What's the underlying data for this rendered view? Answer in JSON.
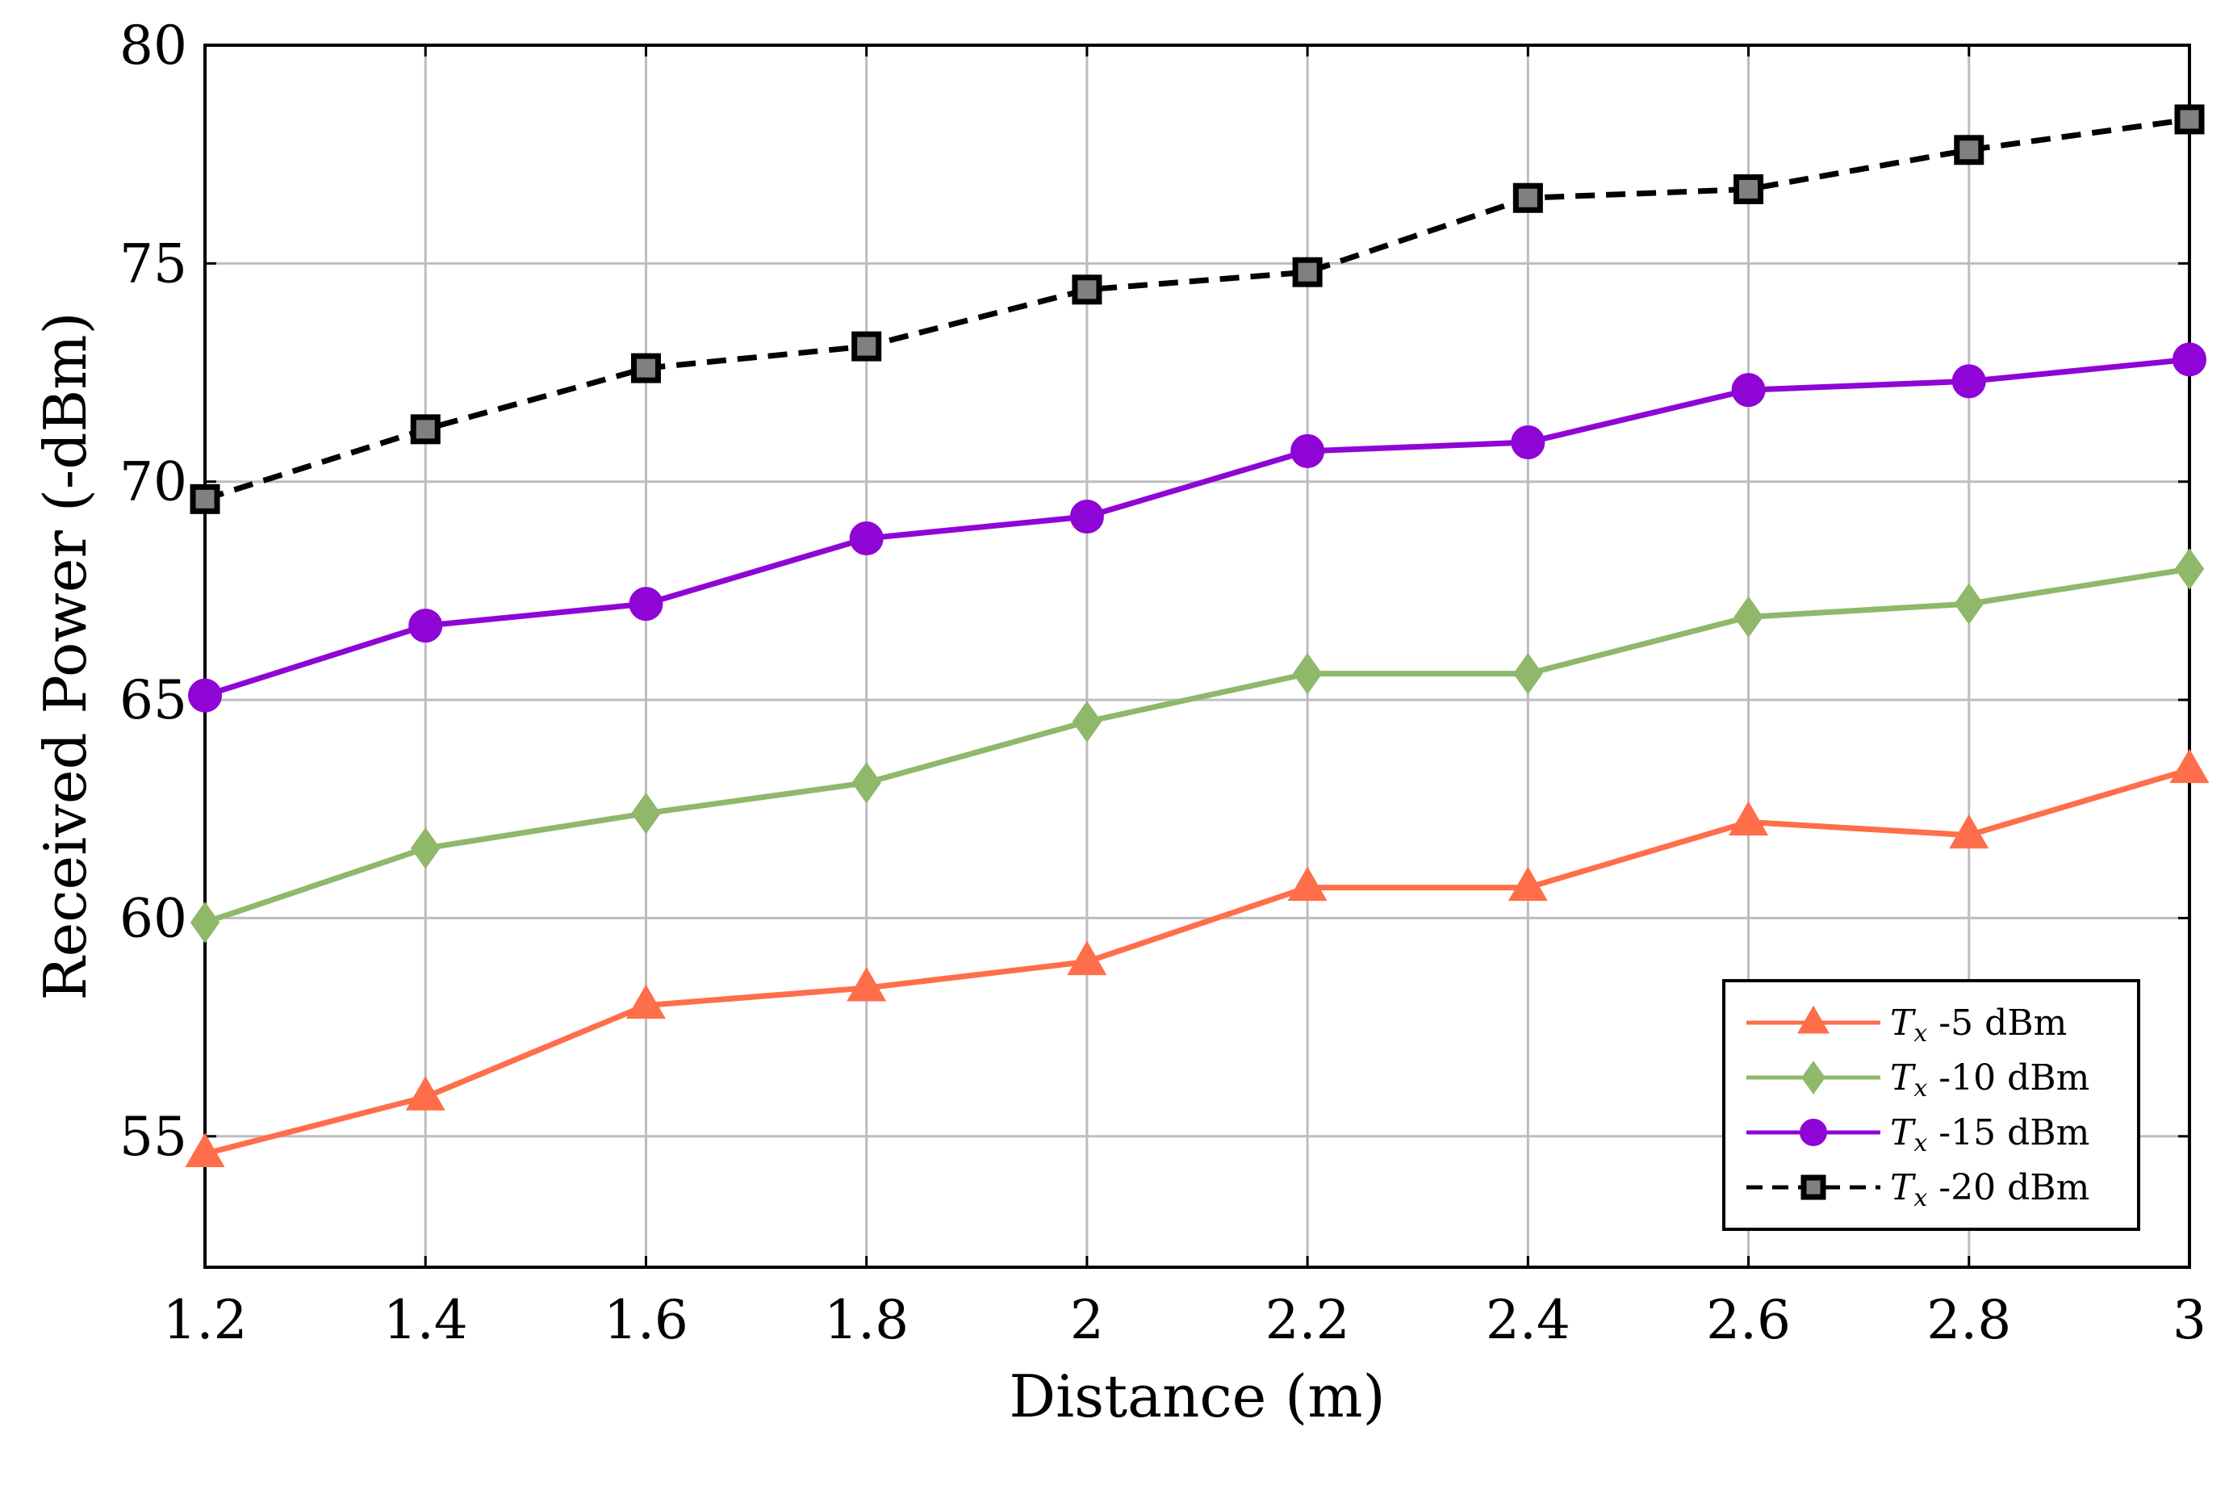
{
  "chart_data": {
    "type": "line",
    "title": "",
    "xlabel": "Distance (m)",
    "ylabel": "Received Power (-dBm)",
    "x": [
      1.2,
      1.4,
      1.6,
      1.8,
      2.0,
      2.2,
      2.4,
      2.6,
      2.8,
      3.0
    ],
    "xticks": [
      1.2,
      1.4,
      1.6,
      1.8,
      2.0,
      2.2,
      2.4,
      2.6,
      2.8,
      3.0
    ],
    "xtick_labels": [
      "1.2",
      "1.4",
      "1.6",
      "1.8",
      "2",
      "2.2",
      "2.4",
      "2.6",
      "2.8",
      "3"
    ],
    "yticks": [
      55,
      60,
      65,
      70,
      75,
      80
    ],
    "ytick_labels": [
      "55",
      "60",
      "65",
      "70",
      "75",
      "80"
    ],
    "xlim": [
      1.2,
      3.0
    ],
    "ylim": [
      52,
      80
    ],
    "grid": true,
    "legend_position": "bottom-right",
    "series": [
      {
        "name": "Tx -5 dBm",
        "symbol": "T",
        "subscript": "x",
        "suffix": " -5 dBm",
        "color": "#ff6e4a",
        "marker": "triangle",
        "dash": "solid",
        "values": [
          54.6,
          55.9,
          58.0,
          58.4,
          59.0,
          60.7,
          60.7,
          62.2,
          61.9,
          63.4
        ]
      },
      {
        "name": "Tx -10 dBm",
        "symbol": "T",
        "subscript": "x",
        "suffix": " -10 dBm",
        "color": "#8fb86a",
        "marker": "diamond",
        "dash": "solid",
        "values": [
          59.9,
          61.6,
          62.4,
          63.1,
          64.5,
          65.6,
          65.6,
          66.9,
          67.2,
          68.0
        ]
      },
      {
        "name": "Tx -15 dBm",
        "symbol": "T",
        "subscript": "x",
        "suffix": " -15 dBm",
        "color": "#8f05d6",
        "marker": "circle",
        "dash": "solid",
        "values": [
          65.1,
          66.7,
          67.2,
          68.7,
          69.2,
          70.7,
          70.9,
          72.1,
          72.3,
          72.8
        ]
      },
      {
        "name": "Tx -20 dBm",
        "symbol": "T",
        "subscript": "x",
        "suffix": " -20 dBm",
        "color": "#000000",
        "marker_fill": "#808080",
        "marker": "square",
        "dash": "dashed",
        "values": [
          69.6,
          71.2,
          72.6,
          73.1,
          74.4,
          74.8,
          76.5,
          76.7,
          77.6,
          78.3
        ]
      }
    ]
  }
}
